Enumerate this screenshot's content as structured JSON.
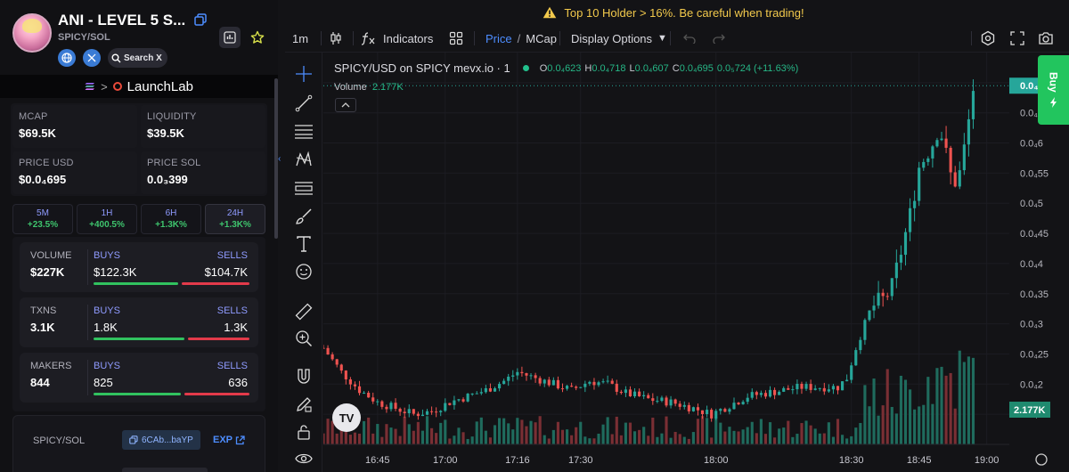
{
  "token": {
    "name": "ANI - LEVEL 5 S...",
    "pair": "SPICY/SOL",
    "search_label": "Search X"
  },
  "launchpad": {
    "label": "LaunchLab"
  },
  "stats": {
    "mcap": {
      "label": "MCAP",
      "value": "$69.5K"
    },
    "liquidity": {
      "label": "LIQUIDITY",
      "value": "$39.5K"
    },
    "price_usd": {
      "label": "PRICE USD",
      "value": "$0.0₄695"
    },
    "price_sol": {
      "label": "PRICE SOL",
      "value": "0.0₃399"
    }
  },
  "timeframes": [
    {
      "label": "5M",
      "change": "+23.5%"
    },
    {
      "label": "1H",
      "change": "+400.5%"
    },
    {
      "label": "6H",
      "change": "+1.3K%"
    },
    {
      "label": "24H",
      "change": "+1.3K%"
    }
  ],
  "activity": {
    "volume": {
      "label": "VOLUME",
      "value": "$227K",
      "buys_label": "BUYS",
      "buys": "$122.3K",
      "sells_label": "SELLS",
      "sells": "$104.7K",
      "buy_ratio": 0.54
    },
    "txns": {
      "label": "TXNS",
      "value": "3.1K",
      "buys_label": "BUYS",
      "buys": "1.8K",
      "sells_label": "SELLS",
      "sells": "1.3K",
      "buy_ratio": 0.58
    },
    "makers": {
      "label": "MAKERS",
      "value": "844",
      "buys_label": "BUYS",
      "buys": "825",
      "sells_label": "SELLS",
      "sells": "636",
      "buy_ratio": 0.56
    }
  },
  "pair_info": {
    "label": "SPICY/SOL",
    "address": "6CAb...baYP",
    "explorer": "EXP"
  },
  "warning": "Top 10 Holder > 16%. Be careful when trading!",
  "toolbar": {
    "interval": "1m",
    "indicators": "Indicators",
    "price": "Price",
    "mcap": "MCap",
    "display_options": "Display Options"
  },
  "legend": {
    "title": "SPICY/USD on SPICY mevx.io · 1",
    "o_label": "O",
    "o": "0.0₄623",
    "h_label": "H",
    "h": "0.0₄718",
    "l_label": "L",
    "l": "0.0₄607",
    "c_label": "C",
    "c": "0.0₄695",
    "change": "0.0₅724 (+11.63%)",
    "volume_label": "Volume",
    "volume": "2.177K"
  },
  "buy_tab": "Buy",
  "colors": {
    "up": "#26a69a",
    "down": "#ef5350",
    "accent": "#4d8dff",
    "warning": "#f2c94c",
    "buy": "#22c55e"
  },
  "chart_data": {
    "type": "candlestick",
    "y_axis_ticks": [
      "0.0₄7",
      "0.0₄65",
      "0.0₄6",
      "0.0₄55",
      "0.0₄5",
      "0.0₄45",
      "0.0₄4",
      "0.0₄35",
      "0.0₄3",
      "0.0₄25",
      "0.0₄2",
      "0.0₄15"
    ],
    "y_tick_values": [
      70,
      65,
      60,
      55,
      50,
      45,
      40,
      35,
      30,
      25,
      20,
      15
    ],
    "x_axis_ticks": [
      "16:45",
      "17:00",
      "17:16",
      "17:30",
      "18:00",
      "18:30",
      "18:45",
      "19:00"
    ],
    "x_tick_minutes": [
      0,
      15,
      31,
      45,
      75,
      105,
      120,
      135
    ],
    "last_price_label": "0.0₄7",
    "volume_label": "2.177K",
    "price_unit_note": "prices in units of 0.0₄ (i.e. 1e-6)",
    "ylim": [
      10,
      75
    ],
    "close_path": [
      [
        -12,
        26
      ],
      [
        -8,
        22
      ],
      [
        -4,
        19
      ],
      [
        0,
        17
      ],
      [
        4,
        16
      ],
      [
        8,
        15
      ],
      [
        12,
        15.5
      ],
      [
        16,
        17
      ],
      [
        20,
        18
      ],
      [
        24,
        19
      ],
      [
        28,
        20.5
      ],
      [
        31,
        22
      ],
      [
        35,
        21
      ],
      [
        39,
        20
      ],
      [
        43,
        19
      ],
      [
        47,
        20.5
      ],
      [
        51,
        20
      ],
      [
        55,
        18.5
      ],
      [
        60,
        17.5
      ],
      [
        65,
        17
      ],
      [
        70,
        16
      ],
      [
        74,
        15
      ],
      [
        78,
        16.5
      ],
      [
        82,
        18
      ],
      [
        86,
        18.5
      ],
      [
        90,
        19
      ],
      [
        94,
        19.5
      ],
      [
        98,
        19.5
      ],
      [
        102,
        19.5
      ],
      [
        104,
        21
      ],
      [
        106,
        26
      ],
      [
        108,
        30
      ],
      [
        110,
        33
      ],
      [
        112,
        34
      ],
      [
        114,
        36
      ],
      [
        116,
        42
      ],
      [
        118,
        48
      ],
      [
        120,
        56
      ],
      [
        121.5,
        58
      ],
      [
        123,
        60
      ],
      [
        124.5,
        63
      ],
      [
        126,
        58
      ],
      [
        127.5,
        53
      ],
      [
        129,
        55
      ],
      [
        130.5,
        61
      ],
      [
        132,
        69
      ]
    ]
  }
}
